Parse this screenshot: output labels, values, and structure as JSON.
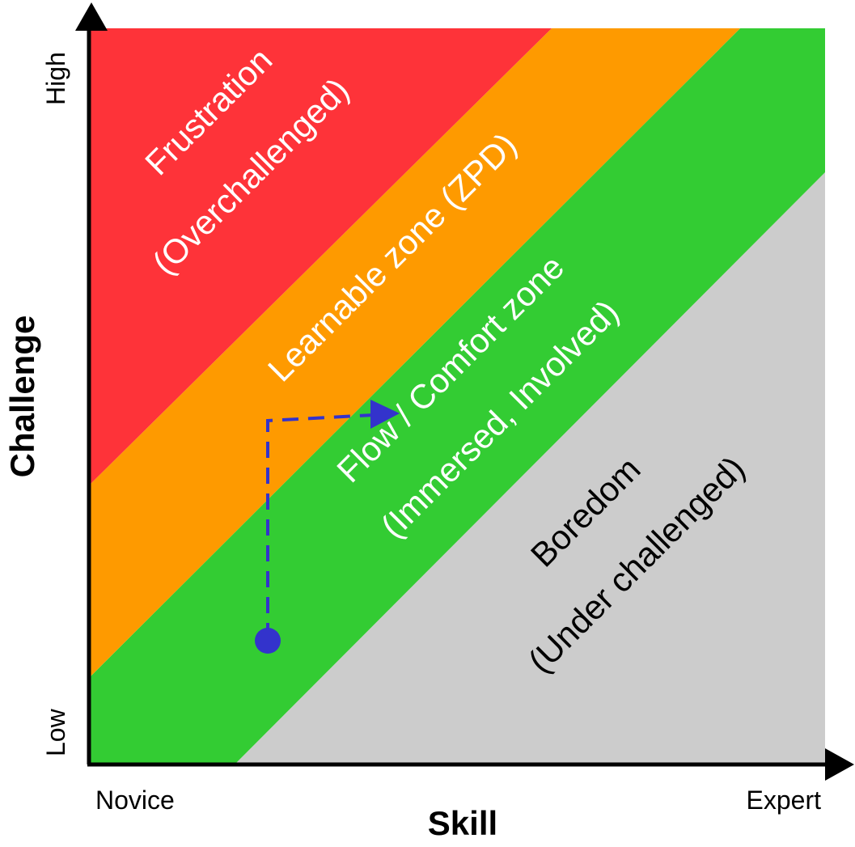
{
  "axes": {
    "x": {
      "title": "Skill",
      "low_label": "Novice",
      "high_label": "Expert"
    },
    "y": {
      "title": "Challenge",
      "low_label": "Low",
      "high_label": "High"
    }
  },
  "zones": {
    "frustration": {
      "line1": "Frustration",
      "line2": "(Overchallenged)",
      "color": "#fe3339",
      "text_color": "#ffffff"
    },
    "learnable": {
      "line1": "Learnable zone (ZPD)",
      "color": "#fe9a00",
      "text_color": "#ffffff"
    },
    "flow": {
      "line1": "Flow / Comfort zone",
      "line2": "(Immersed, Involved)",
      "color": "#33cc33",
      "text_color": "#ffffff"
    },
    "boredom": {
      "line1": "Boredom",
      "line2": "(Under challenged)",
      "color": "#cccccc",
      "text_color": "#000000"
    }
  },
  "path": {
    "color": "#3333cc"
  },
  "axis_color": "#000000"
}
